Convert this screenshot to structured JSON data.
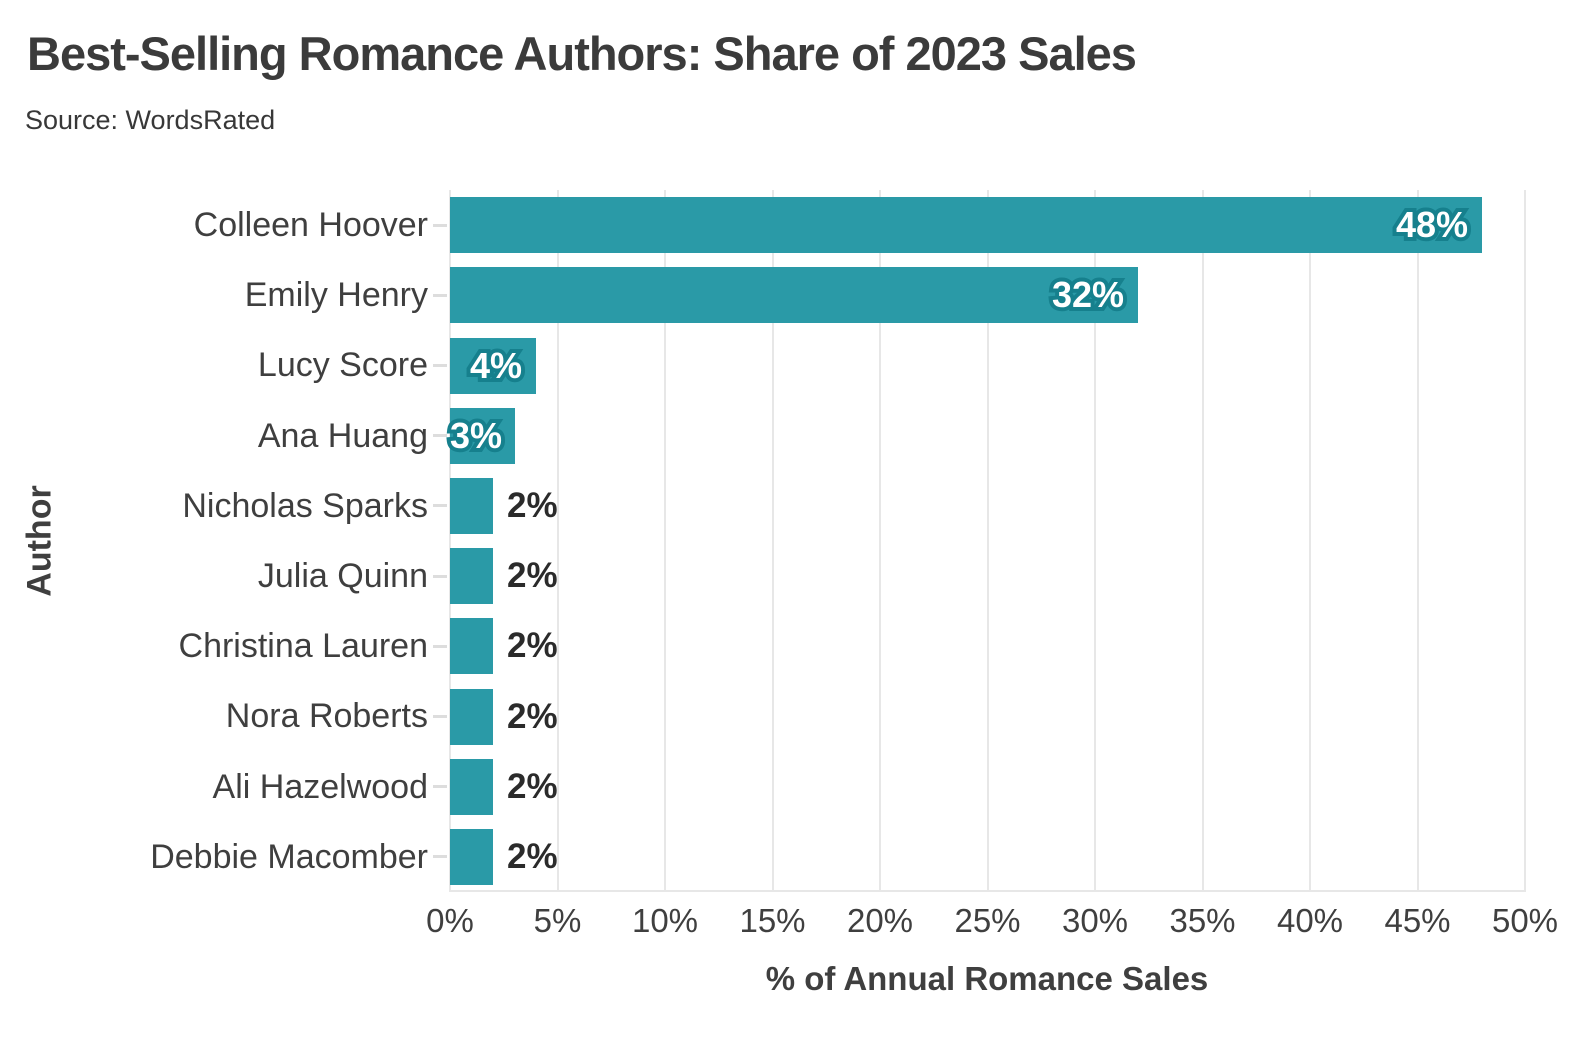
{
  "header": {
    "title": "Best-Selling Romance Authors: Share of 2023 Sales",
    "source": "Source: WordsRated"
  },
  "chart_data": {
    "type": "bar",
    "orientation": "horizontal",
    "title": "Best-Selling Romance Authors: Share of 2023 Sales",
    "subtitle": "Source: WordsRated",
    "categories": [
      "Colleen Hoover",
      "Emily Henry",
      "Lucy Score",
      "Ana Huang",
      "Nicholas Sparks",
      "Julia Quinn",
      "Christina Lauren",
      "Nora Roberts",
      "Ali Hazelwood",
      "Debbie Macomber"
    ],
    "values": [
      48,
      32,
      4,
      3,
      2,
      2,
      2,
      2,
      2,
      2
    ],
    "value_labels": [
      "48%",
      "32%",
      "4%",
      "3%",
      "2%",
      "2%",
      "2%",
      "2%",
      "2%",
      "2%"
    ],
    "xlabel": "% of Annual Romance Sales",
    "ylabel": "Author",
    "xlim": [
      0,
      50
    ],
    "xtick_step": 5,
    "xtick_labels": [
      "0%",
      "5%",
      "10%",
      "15%",
      "20%",
      "25%",
      "30%",
      "35%",
      "40%",
      "45%",
      "50%"
    ],
    "grid": "vertical",
    "legend": "none",
    "colors": {
      "bar": "#2A9AA7",
      "inside_label_text": "#ffffff",
      "inside_label_halo": "#16808d",
      "outside_label_text": "#2b2b2b",
      "gridline": "#e7e7e7",
      "text": "#3b3b3b"
    },
    "inside_label_min_value": 3
  }
}
